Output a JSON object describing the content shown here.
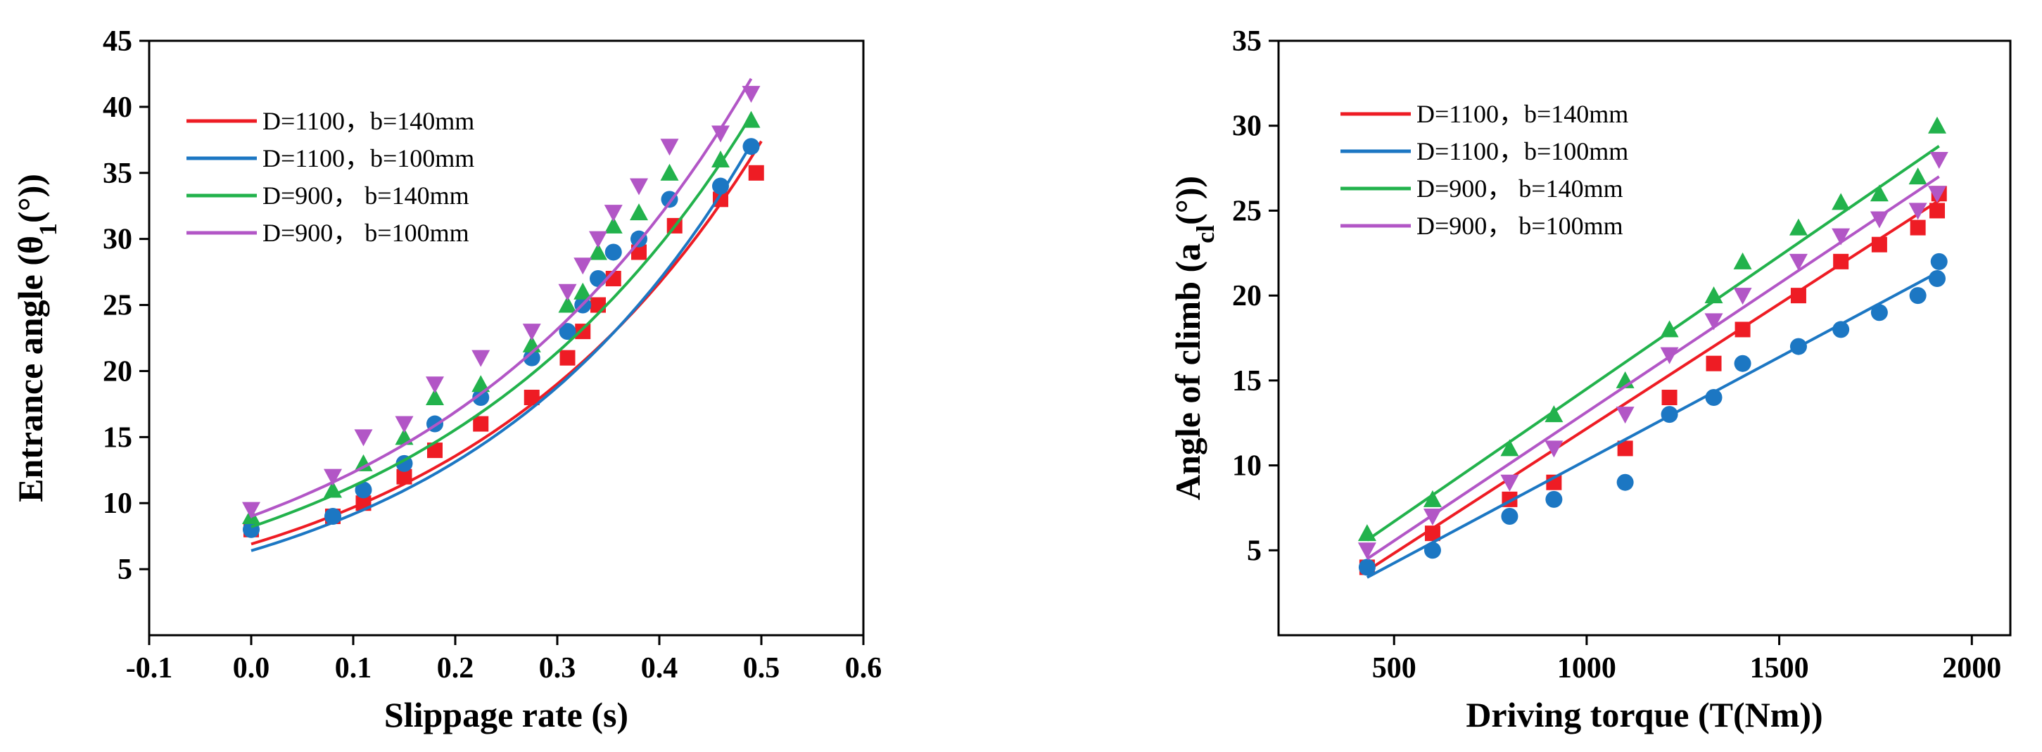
{
  "chart_data": [
    {
      "type": "scatter",
      "xlabel": "Slippage rate (s)",
      "ylabel_prefix": "Entrance angle (θ",
      "ylabel_sub": "1",
      "ylabel_suffix": "(°))",
      "xlim": [
        -0.1,
        0.6
      ],
      "ylim": [
        0,
        45
      ],
      "xticks": [
        -0.1,
        0.0,
        0.1,
        0.2,
        0.3,
        0.4,
        0.5,
        0.6
      ],
      "xtick_labels": [
        "-0.1",
        "0.0",
        "0.1",
        "0.2",
        "0.3",
        "0.4",
        "0.5",
        "0.6"
      ],
      "yticks": [
        5,
        10,
        15,
        20,
        25,
        30,
        35,
        40,
        45
      ],
      "ytick_labels": [
        "5",
        "10",
        "15",
        "20",
        "25",
        "30",
        "35",
        "40",
        "45"
      ],
      "legend_position": "top-left",
      "series": [
        {
          "name": "D=1100，b=140mm",
          "color": "#ee1c24",
          "marker": "square",
          "x": [
            0.0,
            0.08,
            0.11,
            0.15,
            0.18,
            0.225,
            0.275,
            0.31,
            0.325,
            0.34,
            0.355,
            0.38,
            0.415,
            0.46,
            0.495
          ],
          "y": [
            8,
            9,
            10,
            12,
            14,
            16,
            18,
            21,
            23,
            25,
            27,
            29,
            31,
            33,
            35
          ],
          "fit_x": [
            0.0,
            0.5
          ],
          "fit_a": 6.9,
          "fit_b": 3.38
        },
        {
          "name": "D=1100，b=100mm",
          "color": "#1c77c3",
          "marker": "circle",
          "x": [
            0.0,
            0.08,
            0.11,
            0.15,
            0.18,
            0.225,
            0.275,
            0.31,
            0.325,
            0.34,
            0.355,
            0.38,
            0.41,
            0.46,
            0.49
          ],
          "y": [
            8,
            9,
            11,
            13,
            16,
            18,
            21,
            23,
            25,
            27,
            29,
            30,
            33,
            34,
            37
          ],
          "fit_x": [
            0.0,
            0.49
          ],
          "fit_a": 6.4,
          "fit_b": 3.59
        },
        {
          "name": "D=900， b=140mm",
          "color": "#22b24c",
          "marker": "triangle-up",
          "x": [
            0.0,
            0.08,
            0.11,
            0.15,
            0.18,
            0.225,
            0.275,
            0.31,
            0.325,
            0.34,
            0.355,
            0.38,
            0.41,
            0.46,
            0.49
          ],
          "y": [
            9,
            11,
            13,
            15,
            18,
            19,
            22,
            25,
            26,
            29,
            31,
            32,
            35,
            36,
            39
          ],
          "fit_x": [
            0.0,
            0.49
          ],
          "fit_a": 8.2,
          "fit_b": 3.2
        },
        {
          "name": "D=900， b=100mm",
          "color": "#b256c6",
          "marker": "triangle-down",
          "x": [
            0.0,
            0.08,
            0.11,
            0.15,
            0.18,
            0.225,
            0.275,
            0.31,
            0.325,
            0.34,
            0.355,
            0.38,
            0.41,
            0.46,
            0.49
          ],
          "y": [
            9.5,
            12,
            15,
            16,
            19,
            21,
            23,
            26,
            28,
            30,
            32,
            34,
            37,
            38,
            41
          ],
          "fit_x": [
            0.0,
            0.49
          ],
          "fit_a": 9.0,
          "fit_b": 3.15
        }
      ]
    },
    {
      "type": "scatter",
      "xlabel": "Driving torque (T(Nm))",
      "ylabel_prefix": "Angle of climb (a",
      "ylabel_sub": "cl",
      "ylabel_suffix": "(°))",
      "xlim": [
        200,
        2100
      ],
      "ylim": [
        0,
        35
      ],
      "xticks": [
        500,
        1000,
        1500,
        2000
      ],
      "xtick_labels": [
        "500",
        "1000",
        "1500",
        "2000"
      ],
      "yticks": [
        5,
        10,
        15,
        20,
        25,
        30,
        35
      ],
      "ytick_labels": [
        "5",
        "10",
        "15",
        "20",
        "25",
        "30",
        "35"
      ],
      "legend_position": "top-left",
      "series": [
        {
          "name": "D=1100，b=140mm",
          "color": "#ee1c24",
          "marker": "square",
          "x": [
            430,
            600,
            800,
            915,
            1100,
            1215,
            1330,
            1405,
            1550,
            1660,
            1760,
            1860,
            1910,
            1915
          ],
          "y": [
            4,
            6,
            8,
            9,
            11,
            14,
            16,
            18,
            20,
            22,
            23,
            24,
            25,
            26
          ],
          "fit_x": [
            430,
            1915
          ],
          "fit_y": [
            3.8,
            25.6
          ]
        },
        {
          "name": "D=1100，b=100mm",
          "color": "#1c77c3",
          "marker": "circle",
          "x": [
            430,
            600,
            800,
            915,
            1100,
            1215,
            1330,
            1405,
            1550,
            1660,
            1760,
            1860,
            1910,
            1915
          ],
          "y": [
            4,
            5,
            7,
            8,
            9,
            13,
            14,
            16,
            17,
            18,
            19,
            20,
            21,
            22
          ],
          "fit_x": [
            430,
            1915
          ],
          "fit_y": [
            3.4,
            21.4
          ]
        },
        {
          "name": "D=900， b=140mm",
          "color": "#22b24c",
          "marker": "triangle-up",
          "x": [
            430,
            600,
            800,
            915,
            1100,
            1215,
            1330,
            1405,
            1550,
            1660,
            1760,
            1860,
            1910
          ],
          "y": [
            6,
            8,
            11,
            13,
            15,
            18,
            20,
            22,
            24,
            25.5,
            26,
            27,
            30
          ],
          "fit_x": [
            430,
            1915
          ],
          "fit_y": [
            5.6,
            28.8
          ]
        },
        {
          "name": "D=900， b=100mm",
          "color": "#b256c6",
          "marker": "triangle-down",
          "x": [
            430,
            600,
            800,
            915,
            1100,
            1215,
            1330,
            1405,
            1550,
            1660,
            1760,
            1860,
            1910,
            1915
          ],
          "y": [
            5,
            7,
            9,
            11,
            13,
            16.5,
            18.5,
            20,
            22,
            23.5,
            24.5,
            25,
            26,
            28
          ],
          "fit_x": [
            430,
            1915
          ],
          "fit_y": [
            4.5,
            27.0
          ]
        }
      ]
    }
  ]
}
